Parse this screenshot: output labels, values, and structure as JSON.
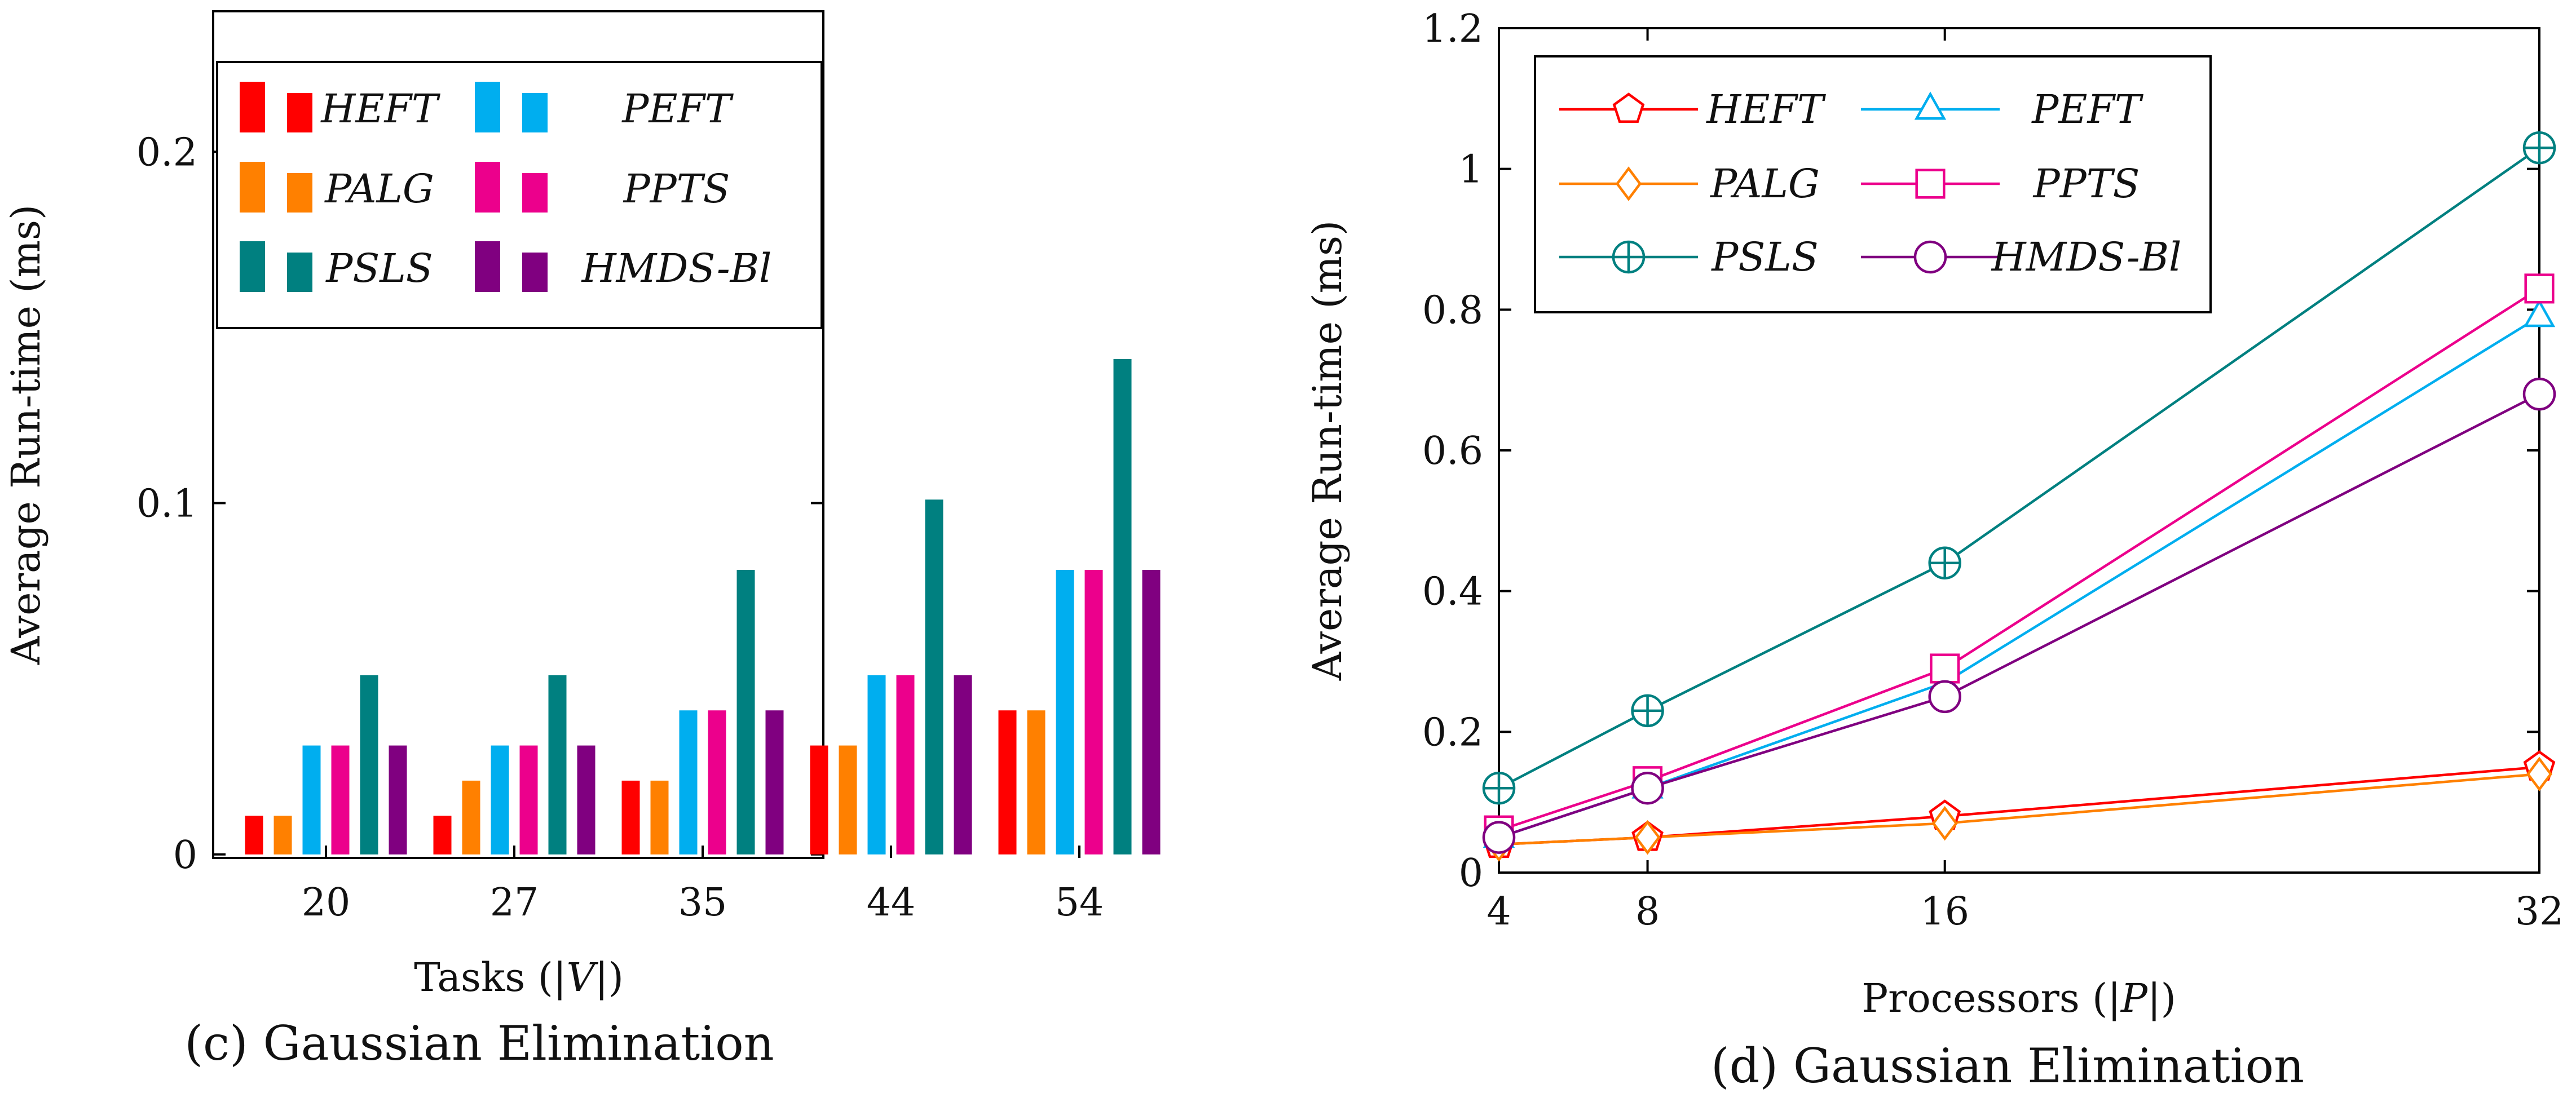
{
  "chart_data": [
    {
      "type": "bar",
      "caption": "(c) Gaussian Elimination",
      "xlabel": "Tasks (|V|)",
      "ylabel": "Average Run-time (ms)",
      "categories": [
        "20",
        "27",
        "35",
        "44",
        "54"
      ],
      "ylim": [
        -0.001,
        0.24
      ],
      "yticks": [
        {
          "value": 0,
          "label": "0"
        },
        {
          "value": 0.1,
          "label": "0.1"
        },
        {
          "value": 0.2,
          "label": "0.2"
        }
      ],
      "legend_position": "top-left",
      "series": [
        {
          "name": "HEFT",
          "color": "#ff0000",
          "values": [
            0.011,
            0.011,
            0.021,
            0.031,
            0.041
          ]
        },
        {
          "name": "PALG",
          "color": "#ff8000",
          "values": [
            0.011,
            0.021,
            0.021,
            0.031,
            0.041
          ]
        },
        {
          "name": "PEFT",
          "color": "#00aeef",
          "values": [
            0.031,
            0.031,
            0.041,
            0.051,
            0.081
          ]
        },
        {
          "name": "PPTS",
          "color": "#ec008c",
          "values": [
            0.031,
            0.031,
            0.041,
            0.051,
            0.081
          ]
        },
        {
          "name": "PSLS",
          "color": "#008080",
          "values": [
            0.051,
            0.051,
            0.081,
            0.101,
            0.141
          ]
        },
        {
          "name": "HMDS-Bl",
          "color": "#800080",
          "values": [
            0.031,
            0.031,
            0.041,
            0.051,
            0.081
          ]
        }
      ]
    },
    {
      "type": "line",
      "caption": "(d) Gaussian Elimination",
      "xlabel": "Processors (|P|)",
      "ylabel": "Average Run-time (ms)",
      "x": [
        4,
        8,
        16,
        32
      ],
      "xticks": [
        {
          "value": 4,
          "label": "4"
        },
        {
          "value": 8,
          "label": "8"
        },
        {
          "value": 16,
          "label": "16"
        },
        {
          "value": 32,
          "label": "32"
        }
      ],
      "xlim": [
        4,
        32
      ],
      "ylim": [
        0,
        1.2
      ],
      "yticks": [
        {
          "value": 0,
          "label": "0"
        },
        {
          "value": 0.2,
          "label": "0.2"
        },
        {
          "value": 0.4,
          "label": "0.4"
        },
        {
          "value": 0.6,
          "label": "0.6"
        },
        {
          "value": 0.8,
          "label": "0.8"
        },
        {
          "value": 1.0,
          "label": "1"
        },
        {
          "value": 1.2,
          "label": "1.2"
        }
      ],
      "legend_position": "top-left",
      "series": [
        {
          "name": "HEFT",
          "color": "#ff0000",
          "marker": "pentagon",
          "values": [
            0.04,
            0.05,
            0.08,
            0.15
          ]
        },
        {
          "name": "PALG",
          "color": "#ff8000",
          "marker": "diamond",
          "values": [
            0.04,
            0.05,
            0.07,
            0.14
          ]
        },
        {
          "name": "PSLS",
          "color": "#008080",
          "marker": "oplus",
          "values": [
            0.12,
            0.23,
            0.44,
            1.03
          ]
        },
        {
          "name": "PEFT",
          "color": "#00aeef",
          "marker": "triangle",
          "values": [
            0.05,
            0.12,
            0.27,
            0.79
          ]
        },
        {
          "name": "PPTS",
          "color": "#ec008c",
          "marker": "square",
          "values": [
            0.06,
            0.13,
            0.29,
            0.83
          ]
        },
        {
          "name": "HMDS-Bl",
          "color": "#800080",
          "marker": "circle",
          "values": [
            0.05,
            0.12,
            0.25,
            0.68
          ]
        }
      ]
    }
  ]
}
